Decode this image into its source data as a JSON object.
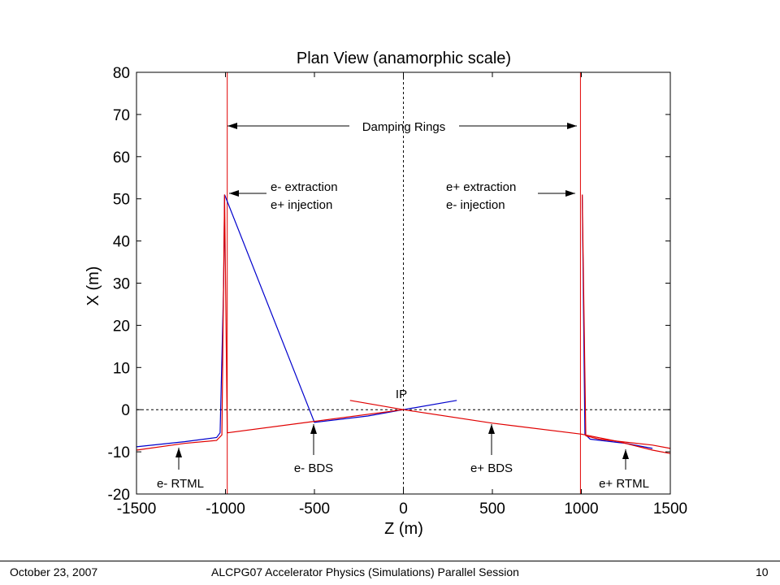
{
  "chart_data": {
    "type": "line",
    "title": "Plan View (anamorphic scale)",
    "xlabel": "Z (m)",
    "ylabel": "X (m)",
    "xlim": [
      -1500,
      1500
    ],
    "ylim": [
      -20,
      80
    ],
    "xticks": [
      -1500,
      -1000,
      -500,
      0,
      500,
      1000,
      1500
    ],
    "yticks": [
      -20,
      -10,
      0,
      10,
      20,
      30,
      40,
      50,
      60,
      70,
      80
    ],
    "colors": {
      "red": "#e00000",
      "blue": "#0000cc",
      "axis": "#000000"
    },
    "vertical_lines": [
      {
        "x": -990,
        "color": "#e00000",
        "style": "solid"
      },
      {
        "x": 995,
        "color": "#e00000",
        "style": "solid"
      },
      {
        "x": 0,
        "color": "#000000",
        "style": "dotted"
      }
    ],
    "horizontal_lines": [
      {
        "y": 0,
        "color": "#000000",
        "style": "dotted"
      }
    ],
    "series": [
      {
        "color": "#0000cc",
        "points": [
          [
            -1500,
            -8.8
          ],
          [
            -1230,
            -7.6
          ],
          [
            -1050,
            -6.6
          ],
          [
            -1030,
            -5.5
          ],
          [
            -1010,
            30
          ],
          [
            -1005,
            51
          ],
          [
            -500,
            -3
          ],
          [
            -200,
            -1.5
          ],
          [
            0,
            0
          ],
          [
            300,
            2.2
          ]
        ]
      },
      {
        "color": "#e00000",
        "points": [
          [
            -1500,
            -9.6
          ],
          [
            -1230,
            -8.0
          ],
          [
            -1050,
            -7.3
          ],
          [
            -1020,
            -6
          ],
          [
            -1005,
            51
          ],
          [
            -990,
            -5.5
          ],
          [
            0,
            0
          ],
          [
            500,
            -3.2
          ],
          [
            1000,
            -5.8
          ]
        ]
      },
      {
        "color": "#e00000",
        "points": [
          [
            -300,
            2.2
          ],
          [
            0,
            0
          ]
        ]
      },
      {
        "color": "#0000cc",
        "points": [
          [
            1005,
            51
          ],
          [
            1020,
            -5.8
          ],
          [
            1050,
            -7.0
          ],
          [
            1250,
            -8.0
          ],
          [
            1400,
            -9.2
          ]
        ]
      },
      {
        "color": "#e00000",
        "points": [
          [
            1005,
            51
          ],
          [
            1025,
            -6.2
          ],
          [
            1100,
            -7.0
          ],
          [
            1400,
            -8.4
          ],
          [
            1500,
            -9.2
          ]
        ]
      },
      {
        "color": "#e00000",
        "points": [
          [
            1000,
            -5.8
          ],
          [
            1200,
            -7.5
          ],
          [
            1400,
            -9.6
          ],
          [
            1500,
            -10.4
          ]
        ]
      }
    ],
    "annotations": {
      "damping_rings": "Damping Rings",
      "e_minus_extraction": "e- extraction",
      "e_plus_injection": "e+ injection",
      "e_plus_extraction": "e+ extraction",
      "e_minus_injection": "e- injection",
      "ip": "IP",
      "e_minus_bds": "e- BDS",
      "e_plus_bds": "e+ BDS",
      "e_minus_rtml": "e- RTML",
      "e_plus_rtml": "e+ RTML"
    }
  },
  "footer": {
    "date": "October 23, 2007",
    "session": "ALCPG07 Accelerator Physics (Simulations) Parallel Session",
    "page": "10"
  }
}
